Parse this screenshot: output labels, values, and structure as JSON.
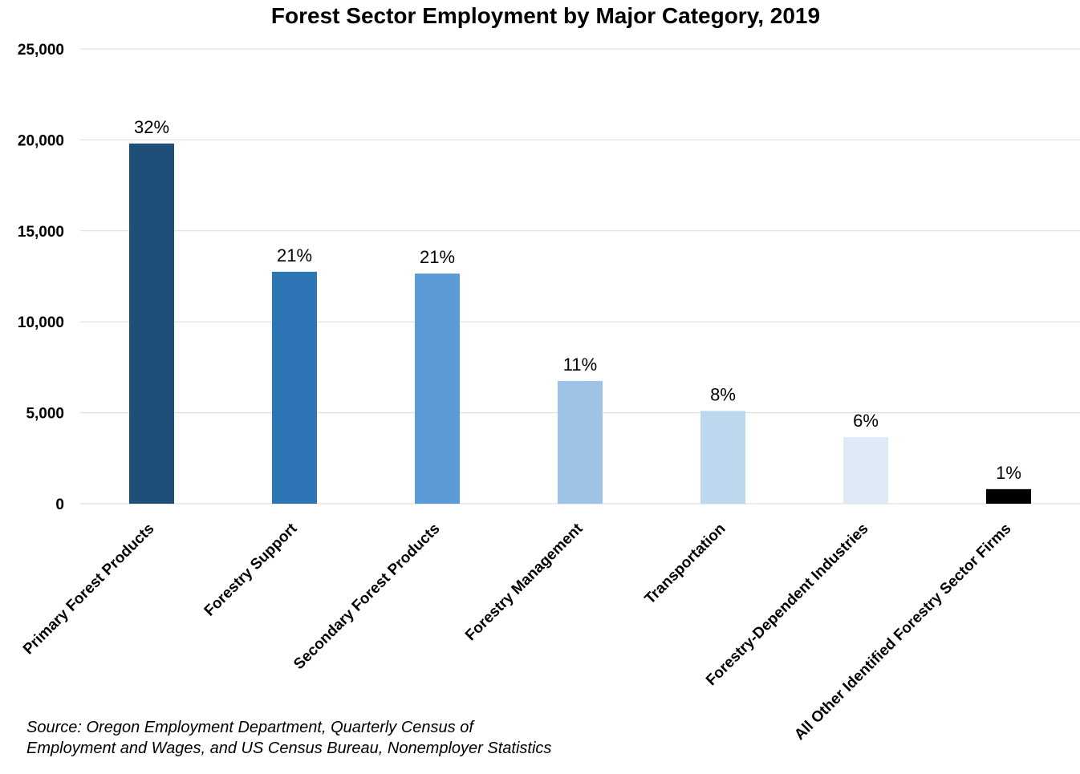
{
  "chart_data": {
    "type": "bar",
    "title": "Forest Sector Employment by Major Category, 2019",
    "xlabel": "",
    "ylabel": "",
    "ylim": [
      0,
      25000
    ],
    "yticks": [
      0,
      5000,
      10000,
      15000,
      20000,
      25000
    ],
    "ytick_labels": [
      "0",
      "5,000",
      "10,000",
      "15,000",
      "20,000",
      "25,000"
    ],
    "grid": true,
    "legend": "none",
    "categories": [
      "Primary Forest Products",
      "Forestry Support",
      "Secondary Forest Products",
      "Forestry Management",
      "Transportation",
      "Forestry-Dependent Industries",
      "All Other Identified Forestry Sector Firms"
    ],
    "values": [
      19800,
      12750,
      12650,
      6750,
      5100,
      3650,
      800
    ],
    "data_labels": [
      "32%",
      "21%",
      "21%",
      "11%",
      "8%",
      "6%",
      "1%"
    ],
    "colors": [
      "#1f4e79",
      "#2e75b6",
      "#5b9bd5",
      "#9dc3e6",
      "#bdd7ee",
      "#deebf7",
      "#000000"
    ]
  },
  "source_note": {
    "line1": "Source: Oregon Employment Department, Quarterly Census of",
    "line2": "Employment and Wages, and US Census Bureau, Nonemployer Statistics"
  }
}
